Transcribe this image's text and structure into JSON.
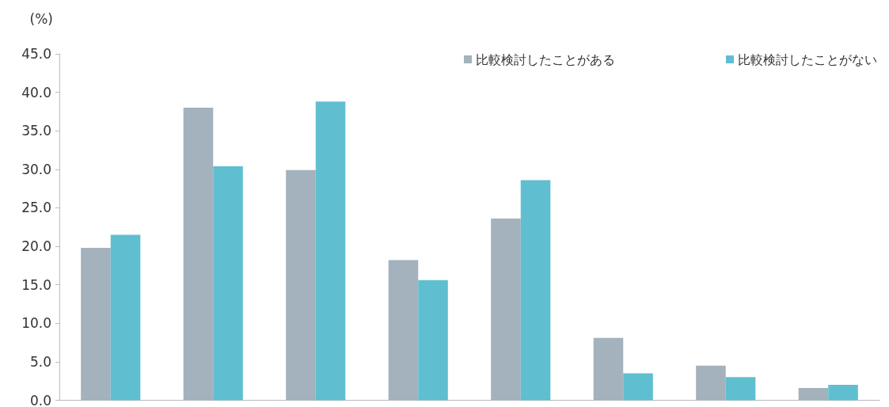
{
  "chart_data": {
    "type": "bar",
    "ylabel": "(%)",
    "categories": [
      null,
      null,
      null,
      null,
      null,
      null,
      null,
      null
    ],
    "series": [
      {
        "name": "比較検討したことがある",
        "color": "#a3b2bc",
        "values": [
          19.8,
          38.0,
          29.9,
          18.2,
          23.6,
          8.1,
          4.5,
          1.6
        ]
      },
      {
        "name": "比較検討したことがない",
        "color": "#5fbfd0",
        "values": [
          21.5,
          30.4,
          38.8,
          15.6,
          28.6,
          3.5,
          3.0,
          2.0
        ]
      }
    ],
    "ylim": [
      0,
      45
    ],
    "yticks": [
      {
        "value": 0,
        "label": "0.0"
      },
      {
        "value": 5,
        "label": "5.0"
      },
      {
        "value": 10,
        "label": "10.0"
      },
      {
        "value": 15,
        "label": "15.0"
      },
      {
        "value": 20,
        "label": "20.0"
      },
      {
        "value": 25,
        "label": "25.0"
      },
      {
        "value": 30,
        "label": "30.0"
      },
      {
        "value": 35,
        "label": "35.0"
      },
      {
        "value": 40,
        "label": "40.0"
      },
      {
        "value": 45,
        "label": "45.0"
      }
    ],
    "grid": false,
    "legend": "top right",
    "tick_labels": "y"
  }
}
